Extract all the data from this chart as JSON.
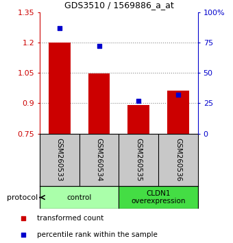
{
  "title": "GDS3510 / 1569886_a_at",
  "samples": [
    "GSM260533",
    "GSM260534",
    "GSM260535",
    "GSM260536"
  ],
  "transformed_counts": [
    1.2,
    1.047,
    0.893,
    0.963
  ],
  "percentile_ranks": [
    87,
    72,
    27,
    32
  ],
  "ylim_left": [
    0.75,
    1.35
  ],
  "ylim_right": [
    0,
    100
  ],
  "yticks_left": [
    0.75,
    0.9,
    1.05,
    1.2,
    1.35
  ],
  "yticks_right": [
    0,
    25,
    50,
    75,
    100
  ],
  "ytick_labels_right": [
    "0",
    "25",
    "50",
    "75",
    "100%"
  ],
  "groups": [
    {
      "label": "control",
      "color": "#AAFFAA"
    },
    {
      "label": "CLDN1\noverexpression",
      "color": "#44DD44"
    }
  ],
  "bar_color": "#CC0000",
  "dot_color": "#0000CC",
  "bar_width": 0.55,
  "left_axis_color": "#CC0000",
  "right_axis_color": "#0000CC",
  "legend_bar_label": "transformed count",
  "legend_dot_label": "percentile rank within the sample",
  "protocol_label": "protocol",
  "table_bg": "#C8C8C8"
}
